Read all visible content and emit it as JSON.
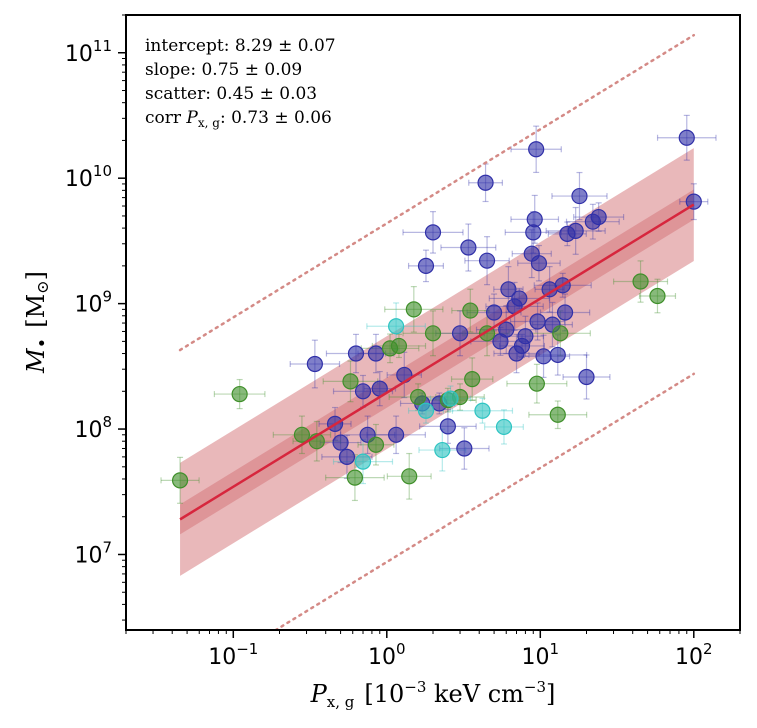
{
  "chart_data": {
    "type": "scatter",
    "title": "",
    "xlabel": {
      "base": "P",
      "sub": "x, g",
      "unit": "[10",
      "unit_exp": "−3",
      "unit_tail": " keV cm",
      "unit_exp2": "−3",
      "close": "]"
    },
    "ylabel": {
      "base": "M",
      "sub": "•",
      "unit": "[M",
      "unit_sub": "⊙",
      "close": "]"
    },
    "xscale": "log",
    "yscale": "log",
    "xlim": [
      0.02,
      200
    ],
    "ylim": [
      2500000,
      200000000000
    ],
    "xticks": [
      {
        "value": 0.1,
        "base": "10",
        "exp": "−1"
      },
      {
        "value": 1,
        "base": "10",
        "exp": "0"
      },
      {
        "value": 10,
        "base": "10",
        "exp": "1"
      },
      {
        "value": 100,
        "base": "10",
        "exp": "2"
      }
    ],
    "yticks": [
      {
        "value": 10000000,
        "base": "10",
        "exp": "7"
      },
      {
        "value": 100000000,
        "base": "10",
        "exp": "8"
      },
      {
        "value": 1000000000,
        "base": "10",
        "exp": "9"
      },
      {
        "value": 10000000000,
        "base": "10",
        "exp": "10"
      },
      {
        "value": 100000000000,
        "base": "10",
        "exp": "11"
      }
    ],
    "fit": {
      "intercept": 8.29,
      "slope": 0.75,
      "scatter": 0.45,
      "x_pivot": 1,
      "x_range": [
        0.045,
        100
      ],
      "inner_band_dex": 0.12,
      "dotted_offset_dex": 1.35,
      "line_color": "#d7263d",
      "band_color": "#d77d82",
      "dotted_color": "#d48a86"
    },
    "annotations": [
      {
        "label": "intercept",
        "text": ": 8.29 ± 0.07"
      },
      {
        "label": "slope",
        "text": ": 0.75 ± 0.09"
      },
      {
        "label": "scatter",
        "text": ": 0.45 ± 0.03"
      },
      {
        "label": "corr ",
        "label_var": "P",
        "label_sub": "x, g",
        "text": ": 0.73 ± 0.06"
      }
    ],
    "series": [
      {
        "name": "blue",
        "color": "#3030a8",
        "points": [
          [
            0.34,
            330000000
          ],
          [
            0.46,
            110000000
          ],
          [
            0.5,
            78000000
          ],
          [
            0.55,
            60000000
          ],
          [
            0.63,
            400000000
          ],
          [
            0.7,
            200000000
          ],
          [
            0.75,
            90000000
          ],
          [
            0.85,
            400000000
          ],
          [
            0.9,
            210000000
          ],
          [
            1.15,
            90000000
          ],
          [
            1.3,
            270000000
          ],
          [
            1.7,
            160000000
          ],
          [
            1.8,
            2000000000
          ],
          [
            2.0,
            3700000000
          ],
          [
            2.2,
            160000000
          ],
          [
            2.5,
            105000000
          ],
          [
            3.0,
            580000000
          ],
          [
            3.2,
            70000000
          ],
          [
            3.4,
            2800000000
          ],
          [
            4.4,
            9200000000
          ],
          [
            4.5,
            2200000000
          ],
          [
            5.0,
            850000000
          ],
          [
            5.5,
            500000000
          ],
          [
            6.0,
            620000000
          ],
          [
            6.2,
            1300000000
          ],
          [
            6.8,
            950000000
          ],
          [
            7.0,
            400000000
          ],
          [
            7.3,
            1100000000
          ],
          [
            7.6,
            460000000
          ],
          [
            8.0,
            550000000
          ],
          [
            8.8,
            2500000000
          ],
          [
            9.0,
            3700000000
          ],
          [
            9.2,
            4700000000
          ],
          [
            9.4,
            17000000000
          ],
          [
            9.6,
            720000000
          ],
          [
            9.8,
            2100000000
          ],
          [
            10.5,
            380000000
          ],
          [
            11.5,
            1300000000
          ],
          [
            12.0,
            680000000
          ],
          [
            13.0,
            390000000
          ],
          [
            14.0,
            1400000000
          ],
          [
            14.5,
            850000000
          ],
          [
            15.0,
            3600000000
          ],
          [
            17.0,
            3800000000
          ],
          [
            18.0,
            7200000000
          ],
          [
            20.0,
            260000000
          ],
          [
            22.0,
            4500000000
          ],
          [
            24.0,
            4900000000
          ],
          [
            90.0,
            21000000000
          ],
          [
            100.0,
            6500000000
          ]
        ]
      },
      {
        "name": "green",
        "color": "#3f8f2a",
        "points": [
          [
            0.045,
            39000000
          ],
          [
            0.11,
            190000000
          ],
          [
            0.28,
            90000000
          ],
          [
            0.35,
            80000000
          ],
          [
            0.58,
            240000000
          ],
          [
            0.62,
            41000000
          ],
          [
            0.85,
            75000000
          ],
          [
            1.05,
            440000000
          ],
          [
            1.2,
            460000000
          ],
          [
            1.4,
            42000000
          ],
          [
            1.5,
            900000000
          ],
          [
            1.6,
            180000000
          ],
          [
            2.0,
            580000000
          ],
          [
            2.5,
            170000000
          ],
          [
            3.0,
            180000000
          ],
          [
            3.5,
            880000000
          ],
          [
            3.6,
            250000000
          ],
          [
            4.5,
            580000000
          ],
          [
            9.5,
            230000000
          ],
          [
            13.0,
            130000000
          ],
          [
            13.5,
            580000000
          ],
          [
            45.0,
            1500000000
          ],
          [
            58.0,
            1150000000
          ]
        ]
      },
      {
        "name": "cyan",
        "color": "#2ec4c2",
        "points": [
          [
            0.7,
            55000000
          ],
          [
            1.15,
            660000000
          ],
          [
            1.8,
            140000000
          ],
          [
            2.3,
            68000000
          ],
          [
            2.6,
            175000000
          ],
          [
            4.2,
            140000000
          ],
          [
            5.8,
            104000000
          ]
        ]
      }
    ]
  }
}
